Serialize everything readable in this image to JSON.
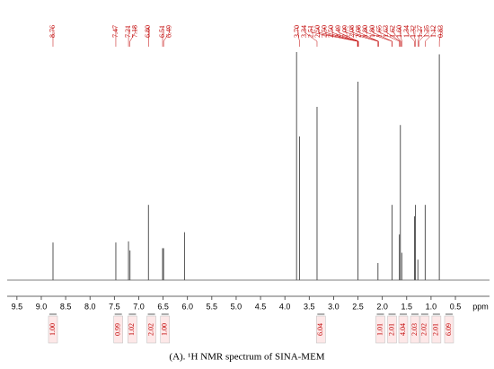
{
  "chart_data": {
    "type": "nmr",
    "caption": "(A). ¹H NMR spectrum of SINA-MEM",
    "xlabel": "ppm",
    "xlim": [
      9.7,
      -0.2
    ],
    "xticks": [
      9.5,
      {
        "value": 9,
        "label": "9.0"
      },
      8.5,
      {
        "value": 8,
        "label": "8.0"
      },
      7.5,
      {
        "value": 7,
        "label": "7.0"
      },
      6.5,
      {
        "value": 6,
        "label": "6.0"
      },
      5.5,
      {
        "value": 5,
        "label": "5.0"
      },
      4.5,
      {
        "value": 4,
        "label": "4.0"
      },
      3.5,
      {
        "value": 3,
        "label": "3.0"
      },
      2.5,
      {
        "value": 2,
        "label": "2.0"
      },
      1.5,
      {
        "value": 1,
        "label": "1.0"
      },
      0.5
    ],
    "ylim": [
      0,
      100
    ],
    "color": "#555555",
    "label_color": "#c00000",
    "peaks": {
      "ppm": [
        8.76,
        7.47,
        7.21,
        7.18,
        6.8,
        6.51,
        6.49,
        6.06,
        3.76,
        3.7,
        3.34,
        2.5,
        2.09,
        1.8,
        1.65,
        1.63,
        1.6,
        1.34,
        1.32,
        1.27,
        1.12,
        0.83
      ],
      "values": [
        16.5,
        16.5,
        17,
        13,
        33,
        14,
        14,
        21,
        100,
        63,
        76,
        87,
        7.5,
        33,
        20,
        68,
        12,
        28,
        33,
        9,
        33,
        99
      ]
    },
    "peak_labels": {
      "values": [
        8.76,
        7.47,
        7.21,
        7.18,
        6.8,
        6.51,
        6.49,
        3.7,
        3.34,
        2.51,
        2.5,
        2.5,
        2.5,
        2.49,
        2.09,
        2.08,
        2.08,
        1.8,
        1.8,
        1.65,
        1.63,
        1.62,
        1.6,
        1.34,
        1.32,
        1.27,
        1.25,
        1.12,
        0.83
      ],
      "value_labels": [
        "8.76",
        "7.47",
        "7.21",
        "7.18",
        "6.80",
        "6.51",
        "6.49",
        "3.70",
        "3.34",
        "2.51",
        "2.50",
        "2.50",
        "2.50",
        "2.49",
        "2.09",
        "2.08",
        "2.08",
        "1.80",
        "1.80",
        "1.65",
        "1.63",
        "1.62",
        "1.60",
        "1.34",
        "1.32",
        "1.27",
        "1.25",
        "1.12",
        "0.83"
      ]
    },
    "integrals": {
      "ppm": [
        8.76,
        7.42,
        7.13,
        6.74,
        6.46,
        3.26,
        2.04,
        1.8,
        1.57,
        1.33,
        1.13,
        0.89,
        0.63
      ],
      "values": [
        1.0,
        0.99,
        1.02,
        2.02,
        1.0,
        6.04,
        1.01,
        2.01,
        4.04,
        2.03,
        2.02,
        2.01,
        6.09
      ],
      "value_labels": [
        "1.00",
        "0.99",
        "1.02",
        "2.02",
        "1.00",
        "6.04",
        "1.01",
        "2.01",
        "4.04",
        "2.03",
        "2.02",
        "2.01",
        "6.09"
      ]
    }
  }
}
